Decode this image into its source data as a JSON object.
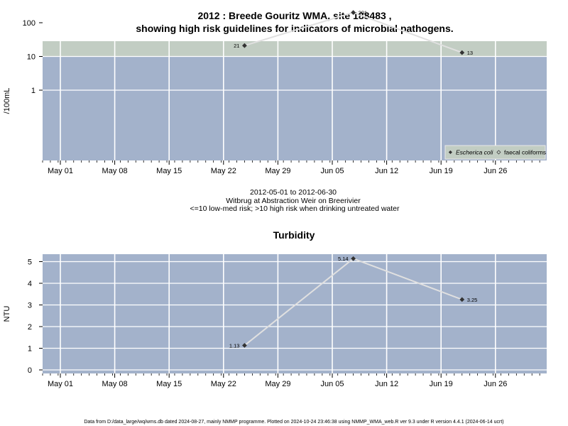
{
  "title_line1": "2012 : Breede Gouritz WMA, site 188483 ,",
  "title_line2": "showing high risk guidelines for indicators of microbial pathogens.",
  "colors": {
    "background": "#a3b2cb",
    "high_risk_band": "#c2cdc3",
    "line": "#e0e0e0",
    "marker": "#333333",
    "grid": "#ffffff"
  },
  "x_ticks": [
    "May 01",
    "May 08",
    "May 15",
    "May 22",
    "May 29",
    "Jun 05",
    "Jun 12",
    "Jun 19",
    "Jun 26"
  ],
  "info": {
    "date_range": "2012-05-01 to 2012-06-30",
    "site_name": "Witbrug at Abstraction Weir on Breerivier",
    "risk_note": "<=10 low-med risk; >10 high risk when drinking untreated water"
  },
  "footer": "Data from D:/data_large/wq/wms.db dated 2024-08-27, mainly NMMP programme. Plotted on 2024-10-24 23:46:38 using NMMP_WMA_web.R ver 9.3 under R version 4.4.1 (2024-06-14 ucrt)",
  "chart_data": [
    {
      "type": "line",
      "ylabel": "/100mL",
      "y_scale": "log",
      "y_ticks": [
        "1",
        "10",
        "100"
      ],
      "high_risk_threshold": 10,
      "legend": {
        "placement": "bottom-right",
        "entries": [
          "Escherica coli",
          "faecal coliforms"
        ]
      },
      "series": [
        {
          "name": "Escherica coli",
          "x": [
            "2012-05-24",
            "2012-06-07",
            "2012-06-21"
          ],
          "y": [
            21,
            201,
            13
          ],
          "labels": [
            "21",
            "201",
            "13"
          ]
        }
      ]
    },
    {
      "type": "line",
      "title": "Turbidity",
      "ylabel": "NTU",
      "y_ticks": [
        "0",
        "1",
        "2",
        "3",
        "4",
        "5"
      ],
      "series": [
        {
          "x": [
            "2012-05-24",
            "2012-06-07",
            "2012-06-21"
          ],
          "y": [
            1.13,
            5.14,
            3.25
          ],
          "labels": [
            "1.13",
            "5.14",
            "3.25"
          ]
        }
      ]
    }
  ]
}
